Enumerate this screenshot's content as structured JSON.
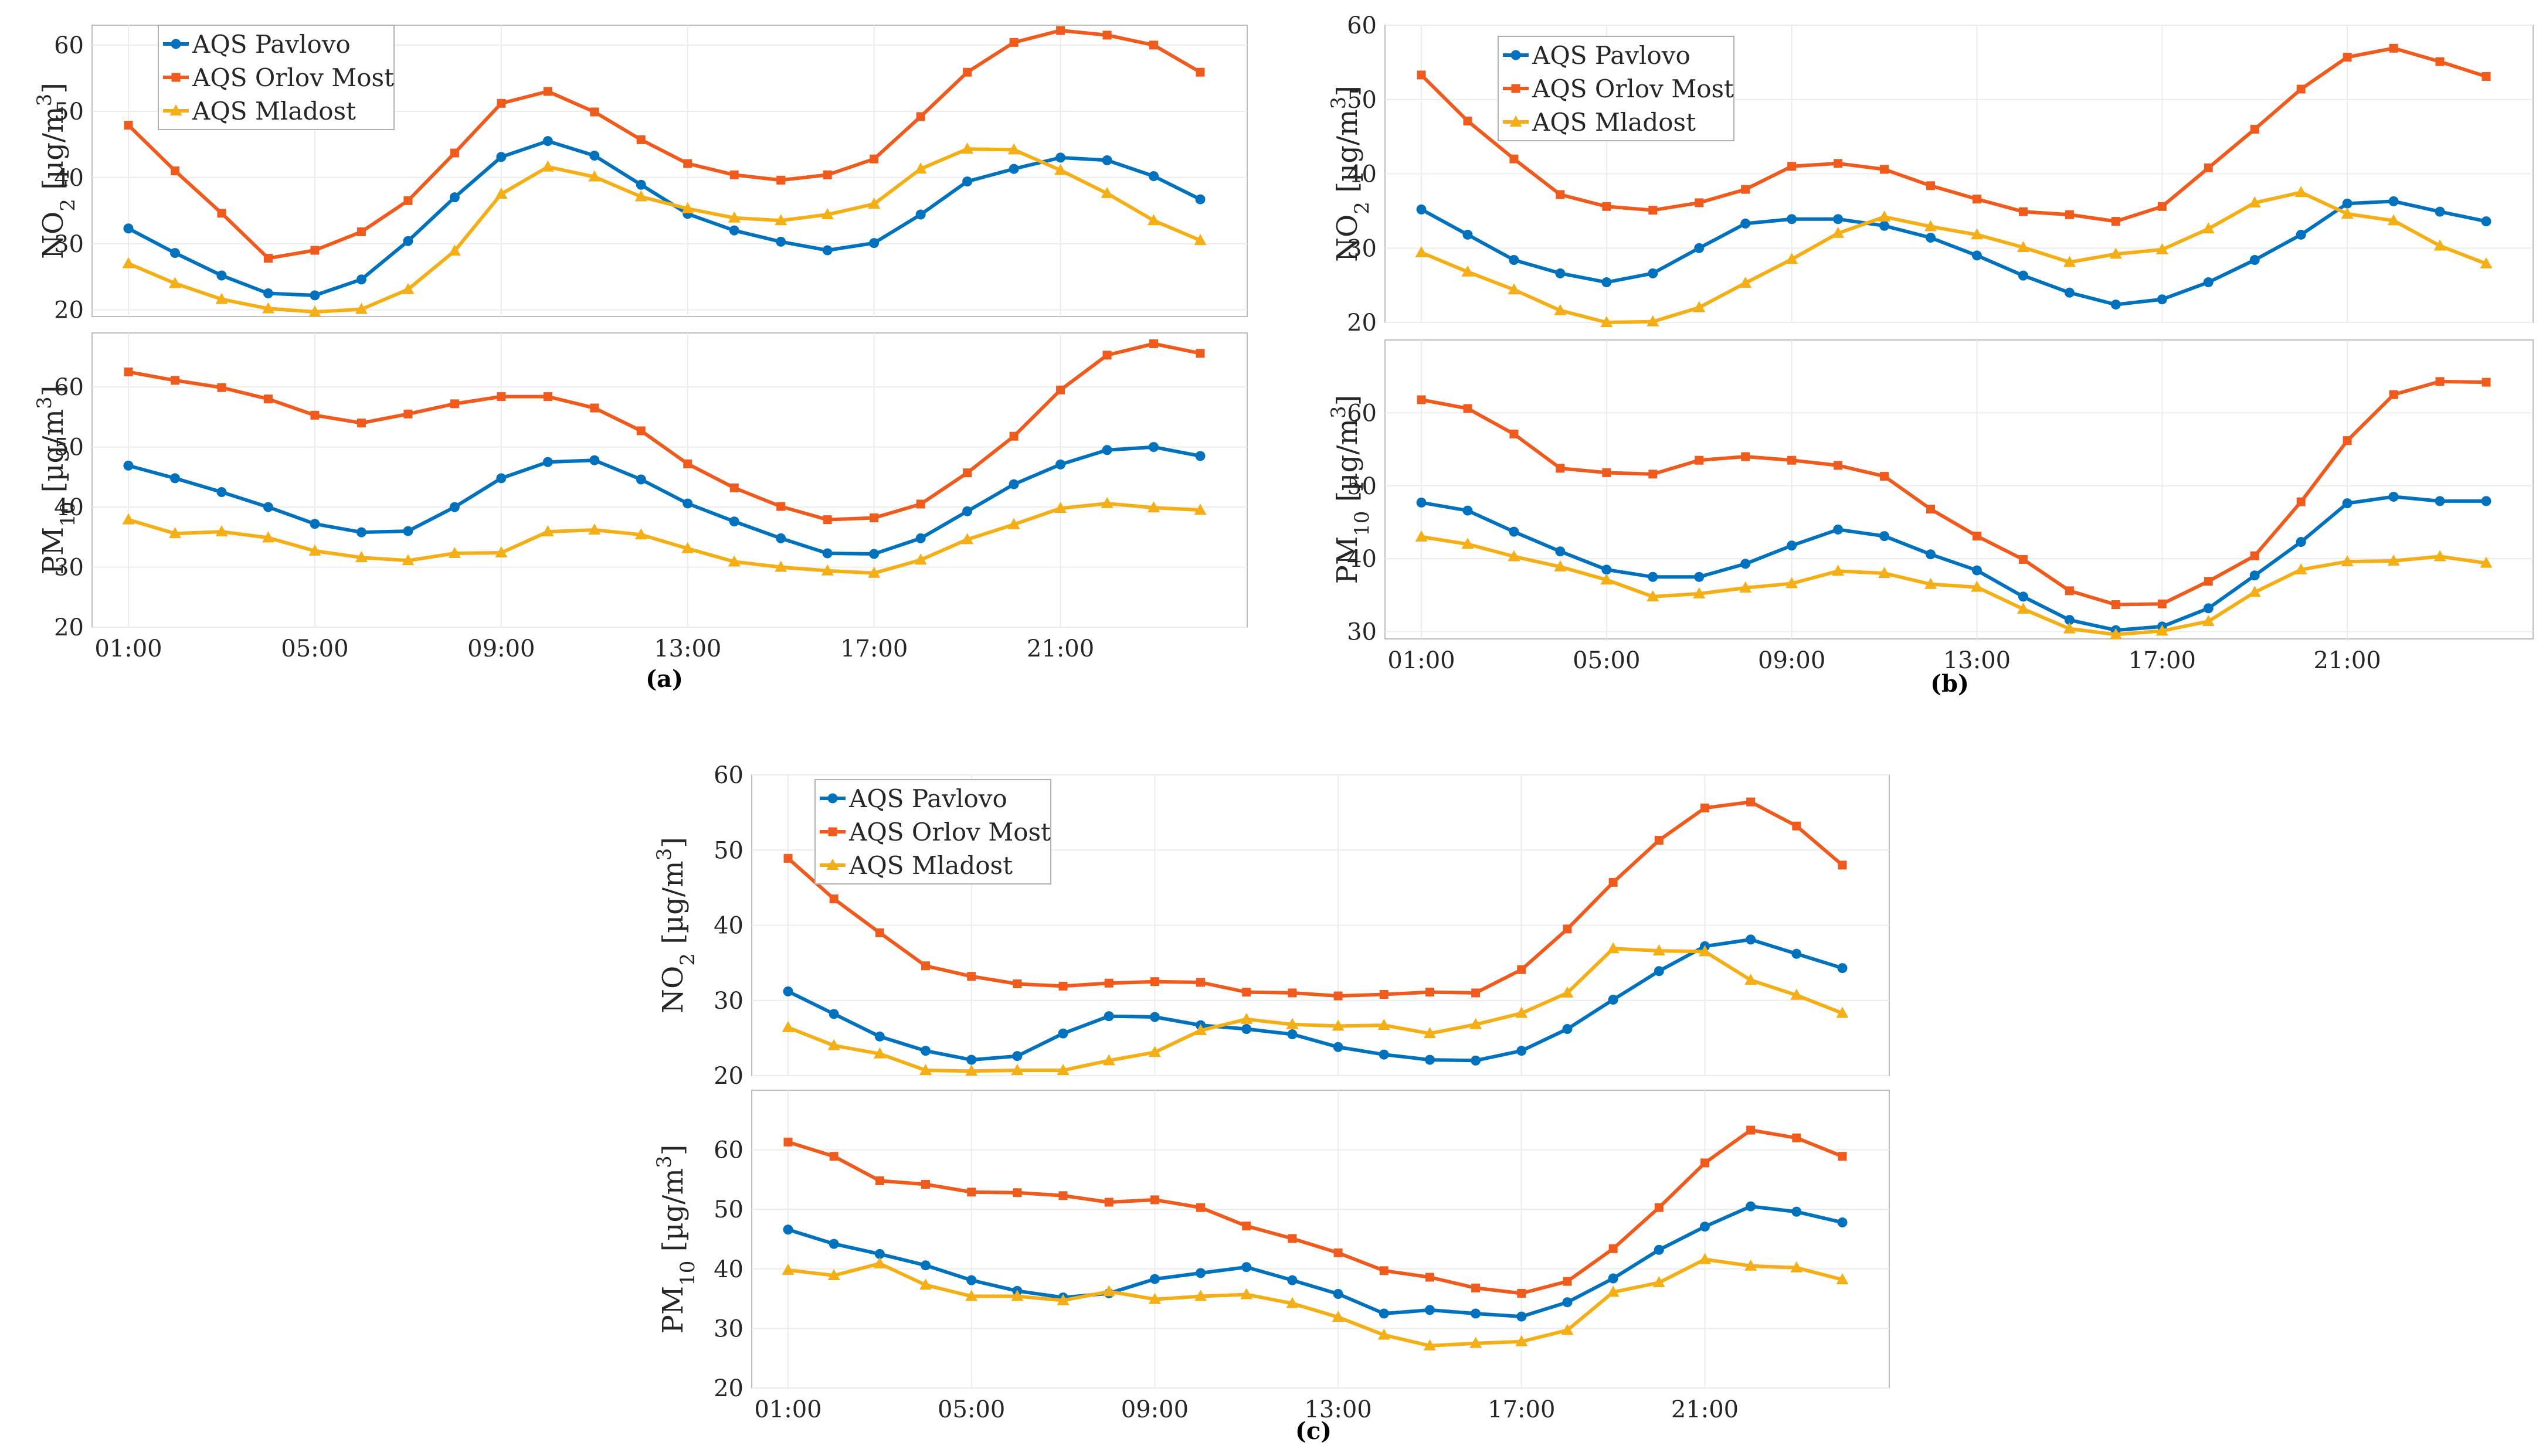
{
  "chart_data": [
    {
      "type": "line",
      "panel": "a",
      "caption": "(a)",
      "x": [
        "01:00",
        "02:00",
        "03:00",
        "04:00",
        "05:00",
        "06:00",
        "07:00",
        "08:00",
        "09:00",
        "10:00",
        "11:00",
        "12:00",
        "13:00",
        "14:00",
        "15:00",
        "16:00",
        "17:00",
        "18:00",
        "19:00",
        "20:00",
        "21:00",
        "22:00",
        "23:00",
        "24:00"
      ],
      "xticks": [
        "01:00",
        "05:00",
        "09:00",
        "13:00",
        "17:00",
        "21:00"
      ],
      "legend": [
        "AQS Pavlovo",
        "AQS Orlov Most",
        "AQS Mladost"
      ],
      "subplots": [
        {
          "name": "no2",
          "ylabel": "NO2 [µg/m3]",
          "ylim": [
            19,
            63
          ],
          "yticks": [
            20,
            30,
            40,
            50,
            60
          ],
          "series": [
            {
              "name": "AQS Pavlovo",
              "values": [
                32.3,
                28.6,
                25.2,
                22.5,
                22.2,
                24.6,
                30.4,
                37.0,
                43.1,
                45.5,
                43.3,
                38.9,
                34.5,
                32.0,
                30.3,
                29.0,
                30.1,
                34.4,
                39.4,
                41.3,
                43.0,
                42.6,
                40.2,
                36.7
              ]
            },
            {
              "name": "AQS Orlov Most",
              "values": [
                47.9,
                41.0,
                34.6,
                27.8,
                29.0,
                31.8,
                36.5,
                43.7,
                51.2,
                53.0,
                49.9,
                45.7,
                42.1,
                40.4,
                39.6,
                40.4,
                42.8,
                49.2,
                55.9,
                60.4,
                62.2,
                61.5,
                60.0,
                55.9
              ]
            },
            {
              "name": "AQS Mladost",
              "values": [
                27.0,
                24.0,
                21.6,
                20.2,
                19.7,
                20.1,
                23.1,
                28.9,
                37.5,
                41.6,
                40.1,
                37.1,
                35.3,
                33.9,
                33.5,
                34.4,
                36.0,
                41.3,
                44.3,
                44.2,
                41.1,
                37.6,
                33.5,
                30.5
              ]
            }
          ]
        },
        {
          "name": "pm10",
          "ylabel": "PM10 [µg/m3]",
          "ylim": [
            20,
            69
          ],
          "yticks": [
            20,
            30,
            40,
            50,
            60
          ],
          "series": [
            {
              "name": "AQS Pavlovo",
              "values": [
                46.9,
                44.8,
                42.5,
                40.0,
                37.2,
                35.8,
                36.0,
                40.0,
                44.8,
                47.5,
                47.8,
                44.6,
                40.6,
                37.6,
                34.8,
                32.3,
                32.2,
                34.8,
                39.3,
                43.8,
                47.1,
                49.5,
                50.0,
                48.5
              ]
            },
            {
              "name": "AQS Orlov Most",
              "values": [
                62.5,
                61.1,
                59.9,
                58.0,
                55.3,
                54.0,
                55.5,
                57.2,
                58.4,
                58.4,
                56.5,
                52.7,
                47.2,
                43.2,
                40.1,
                37.9,
                38.2,
                40.5,
                45.7,
                51.8,
                59.5,
                65.3,
                67.2,
                65.6
              ]
            },
            {
              "name": "AQS Mladost",
              "values": [
                37.9,
                35.6,
                35.9,
                34.9,
                32.7,
                31.6,
                31.1,
                32.3,
                32.4,
                35.9,
                36.2,
                35.4,
                33.1,
                30.9,
                30.0,
                29.4,
                29.0,
                31.2,
                34.6,
                37.1,
                39.8,
                40.6,
                39.9,
                39.5
              ]
            }
          ]
        }
      ]
    },
    {
      "type": "line",
      "panel": "b",
      "caption": "(b)",
      "x": [
        "01:00",
        "02:00",
        "03:00",
        "04:00",
        "05:00",
        "06:00",
        "07:00",
        "08:00",
        "09:00",
        "10:00",
        "11:00",
        "12:00",
        "13:00",
        "14:00",
        "15:00",
        "16:00",
        "17:00",
        "18:00",
        "19:00",
        "20:00",
        "21:00",
        "22:00",
        "23:00",
        "24:00"
      ],
      "xticks": [
        "01:00",
        "05:00",
        "09:00",
        "13:00",
        "17:00",
        "21:00"
      ],
      "legend": [
        "AQS Pavlovo",
        "AQS Orlov Most",
        "AQS Mladost"
      ],
      "subplots": [
        {
          "name": "no2",
          "ylabel": "NO2 [µg/m3]",
          "ylim": [
            20,
            60
          ],
          "yticks": [
            20,
            30,
            40,
            50,
            60
          ],
          "series": [
            {
              "name": "AQS Pavlovo",
              "values": [
                35.2,
                31.8,
                28.4,
                26.6,
                25.4,
                26.6,
                30.0,
                33.3,
                33.9,
                33.9,
                33.0,
                31.4,
                29.0,
                26.3,
                24.0,
                22.4,
                23.1,
                25.4,
                28.4,
                31.8,
                36.0,
                36.3,
                34.9,
                33.6
              ]
            },
            {
              "name": "AQS Orlov Most",
              "values": [
                53.3,
                47.1,
                42.0,
                37.2,
                35.6,
                35.1,
                36.1,
                37.9,
                41.0,
                41.4,
                40.6,
                38.4,
                36.6,
                34.9,
                34.5,
                33.6,
                35.6,
                40.8,
                46.0,
                51.4,
                55.7,
                56.9,
                55.1,
                53.1
              ]
            },
            {
              "name": "AQS Mladost",
              "values": [
                29.4,
                26.8,
                24.4,
                21.6,
                20.0,
                20.1,
                22.0,
                25.3,
                28.5,
                32.0,
                34.2,
                32.9,
                31.8,
                30.1,
                28.1,
                29.2,
                29.8,
                32.6,
                36.1,
                37.5,
                34.6,
                33.7,
                30.3,
                27.9
              ]
            }
          ]
        },
        {
          "name": "pm10",
          "ylabel": "PM10 [µg/m3]",
          "ylim": [
            29,
            70
          ],
          "yticks": [
            30,
            40,
            50,
            60
          ],
          "series": [
            {
              "name": "AQS Pavlovo",
              "values": [
                47.7,
                46.6,
                43.7,
                41.0,
                38.5,
                37.5,
                37.5,
                39.3,
                41.8,
                44.0,
                43.1,
                40.6,
                38.4,
                34.8,
                31.6,
                30.2,
                30.7,
                33.2,
                37.7,
                42.3,
                47.6,
                48.5,
                47.9,
                47.9
              ]
            },
            {
              "name": "AQS Orlov Most",
              "values": [
                61.8,
                60.6,
                57.1,
                52.4,
                51.8,
                51.6,
                53.5,
                54.0,
                53.5,
                52.8,
                51.3,
                46.8,
                43.1,
                39.9,
                35.6,
                33.7,
                33.8,
                36.9,
                40.4,
                47.8,
                56.2,
                62.5,
                64.3,
                64.2
              ]
            },
            {
              "name": "AQS Mladost",
              "values": [
                43.0,
                42.0,
                40.3,
                38.9,
                37.1,
                34.8,
                35.2,
                36.0,
                36.6,
                38.3,
                38.0,
                36.5,
                36.1,
                33.1,
                30.4,
                29.6,
                30.1,
                31.4,
                35.4,
                38.5,
                39.6,
                39.7,
                40.3,
                39.4
              ]
            }
          ]
        }
      ]
    },
    {
      "type": "line",
      "panel": "c",
      "caption": "(c)",
      "x": [
        "01:00",
        "02:00",
        "03:00",
        "04:00",
        "05:00",
        "06:00",
        "07:00",
        "08:00",
        "09:00",
        "10:00",
        "11:00",
        "12:00",
        "13:00",
        "14:00",
        "15:00",
        "16:00",
        "17:00",
        "18:00",
        "19:00",
        "20:00",
        "21:00",
        "22:00",
        "23:00",
        "24:00"
      ],
      "xticks": [
        "01:00",
        "05:00",
        "09:00",
        "13:00",
        "17:00",
        "21:00"
      ],
      "legend": [
        "AQS Pavlovo",
        "AQS Orlov Most",
        "AQS Mladost"
      ],
      "subplots": [
        {
          "name": "no2",
          "ylabel": "NO2 [µg/m3]",
          "ylim": [
            20,
            60
          ],
          "yticks": [
            20,
            30,
            40,
            50,
            60
          ],
          "series": [
            {
              "name": "AQS Pavlovo",
              "values": [
                31.2,
                28.2,
                25.2,
                23.3,
                22.1,
                22.6,
                25.6,
                27.9,
                27.8,
                26.7,
                26.2,
                25.5,
                23.8,
                22.8,
                22.1,
                22.0,
                23.3,
                26.2,
                30.1,
                33.9,
                37.2,
                38.1,
                36.2,
                34.3
              ]
            },
            {
              "name": "AQS Orlov Most",
              "values": [
                48.9,
                43.5,
                39.0,
                34.6,
                33.2,
                32.2,
                31.9,
                32.3,
                32.5,
                32.4,
                31.1,
                31.0,
                30.6,
                30.8,
                31.1,
                31.0,
                34.1,
                39.5,
                45.7,
                51.3,
                55.6,
                56.4,
                53.2,
                48.0
              ]
            },
            {
              "name": "AQS Mladost",
              "values": [
                26.4,
                24.0,
                22.9,
                20.7,
                20.6,
                20.7,
                20.7,
                22.0,
                23.1,
                26.0,
                27.5,
                26.8,
                26.6,
                26.7,
                25.6,
                26.8,
                28.3,
                31.0,
                36.9,
                36.6,
                36.5,
                32.7,
                30.7,
                28.3
              ]
            }
          ]
        },
        {
          "name": "pm10",
          "ylabel": "PM10 [µg/m3]",
          "ylim": [
            20,
            70
          ],
          "yticks": [
            20,
            30,
            40,
            50,
            60
          ],
          "series": [
            {
              "name": "AQS Pavlovo",
              "values": [
                46.6,
                44.2,
                42.5,
                40.6,
                38.1,
                36.3,
                35.2,
                35.9,
                38.3,
                39.3,
                40.3,
                38.1,
                35.8,
                32.5,
                33.1,
                32.5,
                32.0,
                34.4,
                38.4,
                43.2,
                47.1,
                50.5,
                49.6,
                47.8
              ]
            },
            {
              "name": "AQS Orlov Most",
              "values": [
                61.3,
                58.9,
                54.8,
                54.2,
                52.9,
                52.8,
                52.3,
                51.2,
                51.6,
                50.3,
                47.2,
                45.1,
                42.7,
                39.7,
                38.6,
                36.8,
                35.9,
                37.9,
                43.4,
                50.3,
                57.8,
                63.3,
                62.0,
                58.9
              ]
            },
            {
              "name": "AQS Mladost",
              "values": [
                39.8,
                38.9,
                40.9,
                37.3,
                35.4,
                35.4,
                34.7,
                36.2,
                34.9,
                35.4,
                35.7,
                34.2,
                31.9,
                28.9,
                27.1,
                27.5,
                27.8,
                29.7,
                36.1,
                37.7,
                41.6,
                40.5,
                40.2,
                38.2
              ]
            }
          ]
        }
      ]
    }
  ],
  "colors": {
    "pavlovo": "#0072BD",
    "orlov": "#EF5A1D",
    "mladost": "#F5AF16"
  }
}
